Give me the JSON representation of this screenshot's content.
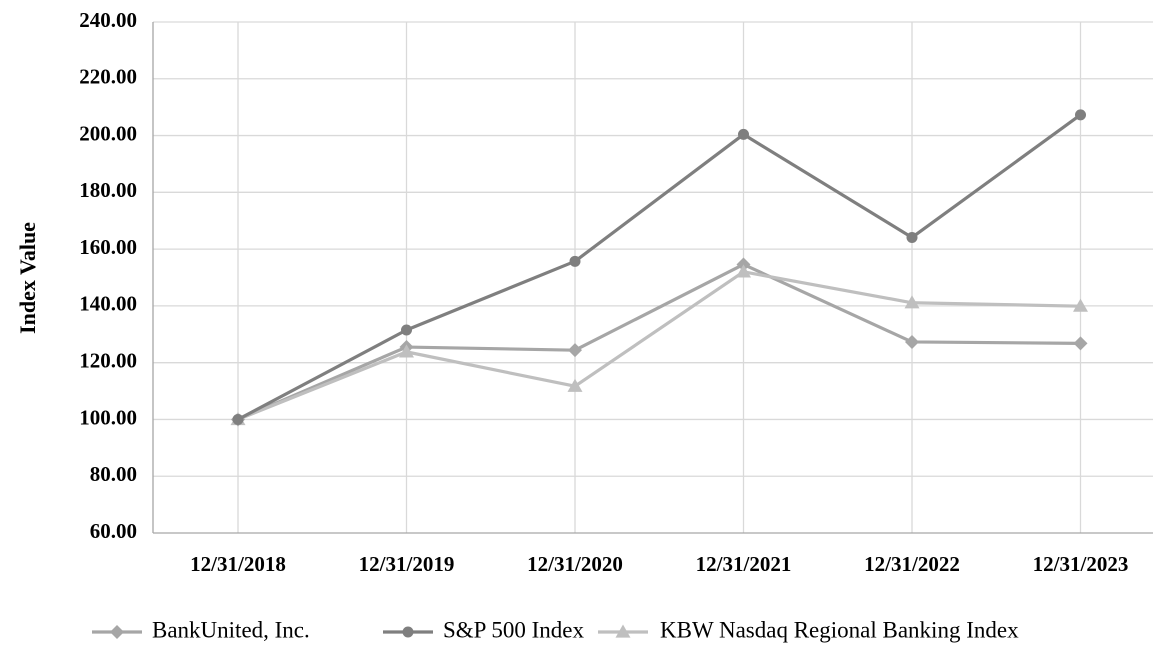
{
  "chart_data": {
    "type": "line",
    "title": "",
    "xlabel": "",
    "ylabel": "Index Value",
    "categories": [
      "12/31/2018",
      "12/31/2019",
      "12/31/2020",
      "12/31/2021",
      "12/31/2022",
      "12/31/2023"
    ],
    "ylim": [
      60,
      240
    ],
    "yticks": [
      "60.00",
      "80.00",
      "100.00",
      "120.00",
      "140.00",
      "160.00",
      "180.00",
      "200.00",
      "220.00",
      "240.00"
    ],
    "grid": true,
    "legend_position": "bottom",
    "series": [
      {
        "name": "BankUnited, Inc.",
        "marker": "diamond",
        "color": "#a6a6a6",
        "values": [
          100.0,
          125.5,
          124.4,
          154.6,
          127.3,
          126.8
        ]
      },
      {
        "name": "S&P 500 Index",
        "marker": "circle",
        "color": "#7f7f7f",
        "values": [
          100.0,
          131.5,
          155.7,
          200.4,
          164.1,
          207.3
        ]
      },
      {
        "name": "KBW Nasdaq Regional Banking Index",
        "marker": "triangle",
        "color": "#bfbfbf",
        "values": [
          100.0,
          123.8,
          111.7,
          152.0,
          141.1,
          139.9
        ]
      }
    ]
  }
}
